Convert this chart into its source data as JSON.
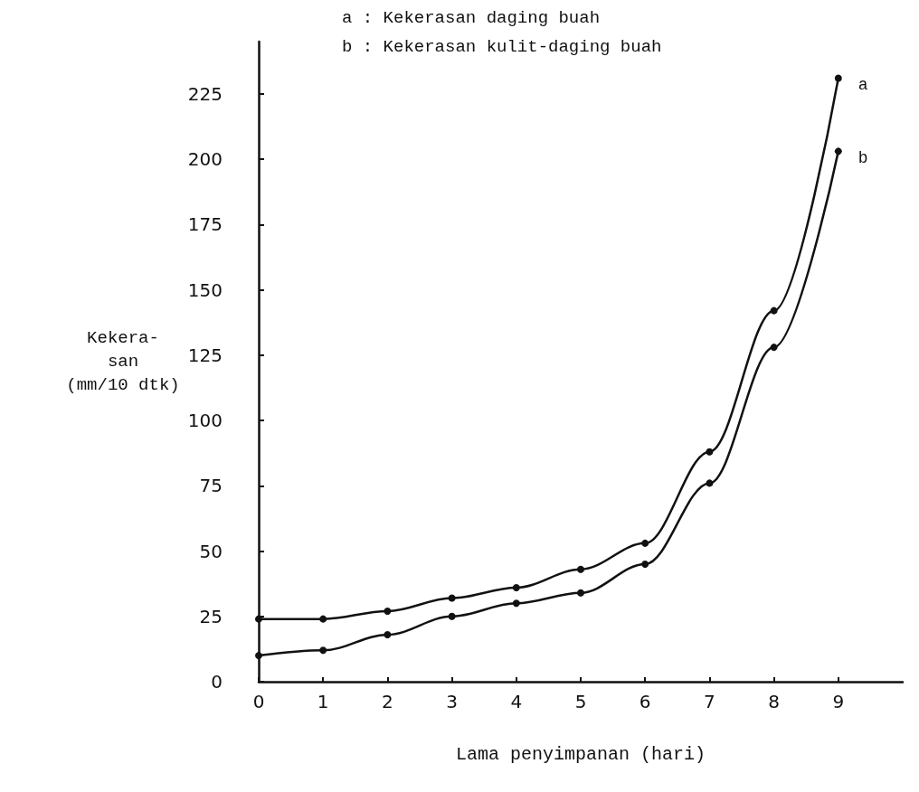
{
  "chart_data": {
    "type": "line",
    "xlabel": "Lama penyimpanan (hari)",
    "ylabel": "Kekera-\nsan\n(mm/10 dtk)",
    "annotations": [
      "a : Kekerasan daging buah",
      "b : Kekerasan kulit-daging buah"
    ],
    "x": [
      0,
      1,
      2,
      3,
      4,
      5,
      6,
      7,
      8,
      9
    ],
    "series": [
      {
        "name": "a",
        "color": "#111111",
        "values": [
          24,
          24,
          27,
          32,
          36,
          43,
          53,
          88,
          142,
          231
        ]
      },
      {
        "name": "b",
        "color": "#111111",
        "values": [
          10,
          12,
          18,
          25,
          30,
          34,
          45,
          76,
          128,
          203
        ]
      }
    ],
    "xlim": [
      0,
      10
    ],
    "xticks": [
      0,
      1,
      2,
      3,
      4,
      5,
      6,
      7,
      8,
      9
    ],
    "ylim": [
      0,
      245
    ],
    "yticks": [
      0,
      25,
      50,
      75,
      100,
      125,
      150,
      175,
      200,
      225
    ],
    "grid": false,
    "legend": false,
    "marker": "circle",
    "line_style": "solid"
  }
}
